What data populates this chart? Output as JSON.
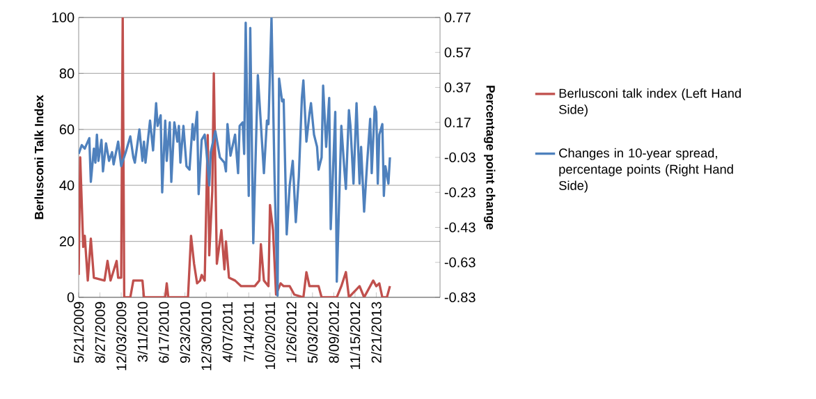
{
  "chart_data": {
    "type": "line",
    "ylabel": "Berlusconi Talk Index",
    "y2label": "Percentage point change",
    "xlim": [
      "2009-05-21",
      "2013-12-12"
    ],
    "xticks": [
      {
        "value": "2009-05-21",
        "label": "5/21/2009"
      },
      {
        "value": "2009-08-27",
        "label": "8/27/2009"
      },
      {
        "value": "2009-12-03",
        "label": "12/03/2009"
      },
      {
        "value": "2010-03-11",
        "label": "3/11/2010"
      },
      {
        "value": "2010-06-17",
        "label": "6/17/2010"
      },
      {
        "value": "2010-09-23",
        "label": "9/23/2010"
      },
      {
        "value": "2010-12-30",
        "label": "12/30/2010"
      },
      {
        "value": "2011-04-07",
        "label": "4/07/2011"
      },
      {
        "value": "2011-07-14",
        "label": "7/14/2011"
      },
      {
        "value": "2011-10-20",
        "label": "10/20/2011"
      },
      {
        "value": "2012-01-26",
        "label": "1/26/2012"
      },
      {
        "value": "2012-05-03",
        "label": "5/03/2012"
      },
      {
        "value": "2012-08-09",
        "label": "8/09/2012"
      },
      {
        "value": "2012-11-15",
        "label": "11/15/2012"
      },
      {
        "value": "2013-02-21",
        "label": "2/21/2013"
      }
    ],
    "ylim": [
      0,
      100
    ],
    "yticks": [
      0,
      20,
      40,
      60,
      80,
      100
    ],
    "y2lim": [
      -0.83,
      0.77
    ],
    "y2ticks": [
      -0.83,
      -0.63,
      -0.43,
      -0.23,
      -0.03,
      0.17,
      0.37,
      0.57,
      0.77
    ],
    "grid": "y",
    "legend": "right",
    "series": [
      {
        "name": "Berlusconi talk index (Left Hand Side)",
        "color": "#c0504d",
        "axis": "y",
        "x": [
          "2009-05-21",
          "2009-05-28",
          "2009-06-11",
          "2009-06-18",
          "2009-07-02",
          "2009-07-16",
          "2009-07-30",
          "2009-09-17",
          "2009-10-01",
          "2009-10-15",
          "2009-11-12",
          "2009-11-19",
          "2009-12-03",
          "2009-12-10",
          "2009-12-17",
          "2010-01-14",
          "2010-01-28",
          "2010-03-11",
          "2010-03-18",
          "2010-06-24",
          "2010-07-01",
          "2010-07-08",
          "2010-10-07",
          "2010-10-21",
          "2010-11-04",
          "2010-11-18",
          "2010-12-02",
          "2010-12-09",
          "2010-12-23",
          "2011-01-06",
          "2011-01-13",
          "2011-01-27",
          "2011-02-03",
          "2011-02-17",
          "2011-03-10",
          "2011-03-24",
          "2011-03-31",
          "2011-04-14",
          "2011-05-12",
          "2011-06-09",
          "2011-08-11",
          "2011-09-01",
          "2011-09-08",
          "2011-09-22",
          "2011-10-13",
          "2011-10-20",
          "2011-11-03",
          "2011-11-17",
          "2011-12-08",
          "2011-12-22",
          "2012-01-19",
          "2012-02-09",
          "2012-03-22",
          "2012-04-05",
          "2012-04-19",
          "2012-05-31",
          "2012-06-14",
          "2012-08-23",
          "2012-09-13",
          "2012-10-04",
          "2012-10-18",
          "2012-12-06",
          "2012-12-27",
          "2013-02-07",
          "2013-02-21",
          "2013-03-07",
          "2013-03-21",
          "2013-04-11",
          "2013-04-25"
        ],
        "values": [
          8,
          50,
          18,
          22,
          6,
          21,
          7,
          6,
          13,
          6,
          13,
          7,
          7,
          100,
          0,
          0,
          6,
          6,
          0,
          0,
          5,
          0,
          0,
          22,
          12,
          5,
          6,
          8,
          6,
          58,
          15,
          38,
          80,
          12,
          24,
          10,
          20,
          7,
          6,
          4,
          4,
          6,
          19,
          6,
          4,
          33,
          24,
          1,
          5,
          4,
          4,
          1,
          0,
          9,
          4,
          4,
          0,
          0,
          4,
          9,
          0,
          4,
          0,
          6,
          4,
          5,
          0,
          0,
          4
        ]
      },
      {
        "name": "Changes in 10-year spread, percentage points (Right Hand Side)",
        "color": "#4f81bd",
        "axis": "y2",
        "x": [
          "2009-05-21",
          "2009-06-04",
          "2009-06-18",
          "2009-07-09",
          "2009-07-16",
          "2009-07-30",
          "2009-08-06",
          "2009-08-13",
          "2009-08-20",
          "2009-09-03",
          "2009-09-10",
          "2009-09-24",
          "2009-10-08",
          "2009-10-22",
          "2009-10-29",
          "2009-11-19",
          "2009-12-03",
          "2009-12-24",
          "2010-01-14",
          "2010-01-28",
          "2010-02-04",
          "2010-02-25",
          "2010-03-11",
          "2010-03-18",
          "2010-03-25",
          "2010-04-15",
          "2010-04-29",
          "2010-05-13",
          "2010-05-20",
          "2010-06-03",
          "2010-06-10",
          "2010-06-24",
          "2010-07-01",
          "2010-07-15",
          "2010-07-22",
          "2010-08-05",
          "2010-08-19",
          "2010-08-26",
          "2010-09-02",
          "2010-09-16",
          "2010-09-30",
          "2010-10-14",
          "2010-10-28",
          "2010-11-04",
          "2010-11-18",
          "2010-11-25",
          "2010-12-09",
          "2010-12-23",
          "2010-12-30",
          "2011-01-13",
          "2011-01-20",
          "2011-02-10",
          "2011-03-03",
          "2011-03-24",
          "2011-03-31",
          "2011-04-07",
          "2011-04-21",
          "2011-04-28",
          "2011-05-12",
          "2011-05-26",
          "2011-06-02",
          "2011-06-16",
          "2011-06-23",
          "2011-06-30",
          "2011-07-14",
          "2011-07-21",
          "2011-08-04",
          "2011-08-18",
          "2011-08-25",
          "2011-09-08",
          "2011-09-22",
          "2011-10-06",
          "2011-10-13",
          "2011-10-27",
          "2011-11-10",
          "2011-11-24",
          "2011-12-01",
          "2011-12-15",
          "2011-12-22",
          "2012-01-05",
          "2012-01-19",
          "2012-02-02",
          "2012-02-16",
          "2012-03-01",
          "2012-03-15",
          "2012-03-22",
          "2012-04-05",
          "2012-04-19",
          "2012-04-26",
          "2012-05-10",
          "2012-05-24",
          "2012-05-31",
          "2012-06-14",
          "2012-06-21",
          "2012-07-05",
          "2012-07-19",
          "2012-07-26",
          "2012-08-02",
          "2012-08-16",
          "2012-08-23",
          "2012-09-13",
          "2012-09-27",
          "2012-10-04",
          "2012-10-18",
          "2012-10-25",
          "2012-11-08",
          "2012-11-22",
          "2012-12-06",
          "2012-12-13",
          "2012-12-27",
          "2013-01-10",
          "2013-01-24",
          "2013-01-31",
          "2013-02-14",
          "2013-02-21",
          "2013-02-28",
          "2013-03-07",
          "2013-03-21",
          "2013-03-28",
          "2013-04-04",
          "2013-04-18",
          "2013-04-25"
        ],
        "values": [
          -0.01,
          0.04,
          0.02,
          0.08,
          -0.17,
          0.02,
          -0.06,
          0.1,
          -0.05,
          0.07,
          -0.11,
          0.05,
          -0.05,
          0.0,
          -0.07,
          0.06,
          -0.08,
          0.0,
          0.09,
          -0.03,
          -0.06,
          0.13,
          -0.05,
          0.06,
          -0.06,
          0.18,
          0.01,
          0.28,
          0.15,
          0.21,
          -0.23,
          0.18,
          -0.05,
          0.17,
          -0.17,
          0.17,
          0.06,
          0.15,
          -0.06,
          0.15,
          -0.08,
          -0.1,
          0.16,
          0.07,
          0.23,
          -0.24,
          0.07,
          0.1,
          0.02,
          -0.19,
          0.0,
          0.12,
          -0.03,
          -0.06,
          -0.11,
          0.16,
          -0.02,
          0.02,
          0.1,
          -0.12,
          0.15,
          0.17,
          -0.01,
          0.74,
          -0.25,
          0.71,
          -0.52,
          0.12,
          0.44,
          0.16,
          -0.12,
          0.18,
          0.16,
          0.77,
          -0.14,
          -0.82,
          0.42,
          0.29,
          0.3,
          -0.47,
          -0.19,
          -0.05,
          -0.4,
          -0.14,
          0.31,
          0.41,
          0.06,
          0.22,
          0.28,
          0.1,
          0.03,
          -0.1,
          -0.03,
          0.38,
          0.03,
          0.31,
          -0.44,
          -0.22,
          0.23,
          -0.74,
          0.15,
          -0.1,
          -0.21,
          0.24,
          0.15,
          -0.18,
          0.28,
          -0.18,
          0.03,
          -0.34,
          -0.06,
          0.19,
          -0.12,
          0.26,
          0.23,
          -0.18,
          0.1,
          0.16,
          -0.25,
          -0.08,
          -0.18,
          -0.03
        ]
      }
    ]
  }
}
